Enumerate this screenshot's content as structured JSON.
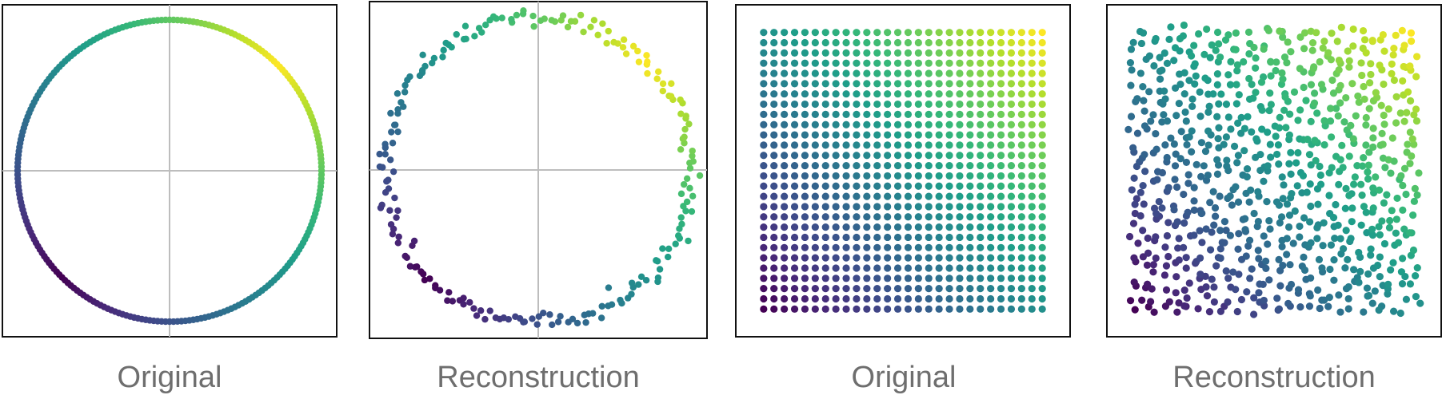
{
  "figure": {
    "panels": [
      {
        "caption": "Original"
      },
      {
        "caption": "Reconstruction"
      },
      {
        "caption": "Original"
      },
      {
        "caption": "Reconstruction"
      }
    ]
  },
  "colors": {
    "colormap": "viridis",
    "frame": "#111111",
    "crosshair": "#bdbdbd",
    "caption": "#6e6e6e"
  },
  "chart_data": [
    {
      "type": "scatter",
      "shape": "circle",
      "points": 240,
      "radius": 1.0,
      "noise": 0,
      "color_by": "angle",
      "crosshair": true,
      "xlim": [
        -1.1,
        1.1
      ],
      "ylim": [
        -1.1,
        1.1
      ],
      "grid": false
    },
    {
      "type": "scatter",
      "shape": "circle",
      "points": 210,
      "radius": 1.0,
      "noise": 0.03,
      "color_by": "angle",
      "crosshair": true,
      "xlim": [
        -1.1,
        1.1
      ],
      "ylim": [
        -1.1,
        1.1
      ],
      "grid": false
    },
    {
      "type": "scatter",
      "shape": "grid",
      "cols": 28,
      "rows": 28,
      "noise": 0,
      "color_by": "x+y",
      "crosshair": false,
      "xlim": [
        -0.1,
        1.1
      ],
      "ylim": [
        -0.1,
        1.1
      ],
      "grid": false
    },
    {
      "type": "scatter",
      "shape": "grid",
      "cols": 28,
      "rows": 28,
      "noise": 0.012,
      "color_by": "x+y",
      "crosshair": false,
      "xlim": [
        -0.1,
        1.1
      ],
      "ylim": [
        -0.1,
        1.1
      ],
      "grid": false
    }
  ]
}
